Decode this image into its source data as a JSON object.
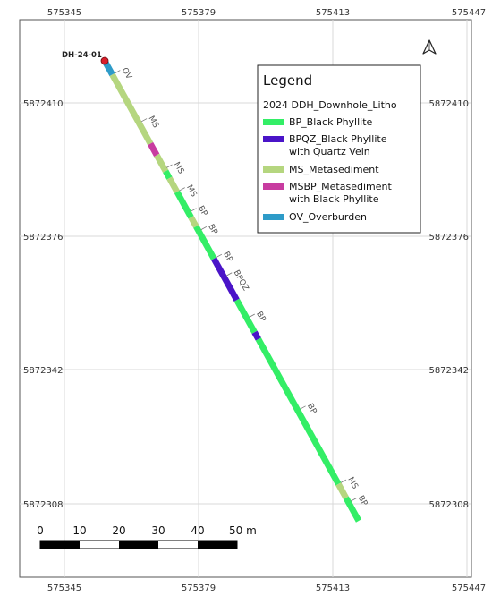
{
  "map": {
    "x_ticks": [
      "575345",
      "575379",
      "575413",
      "575447"
    ],
    "y_ticks": [
      "5872410",
      "5872376",
      "5872342",
      "5872308"
    ],
    "drillhole": {
      "name": "DH-24-01",
      "segments": [
        {
          "code": "OV",
          "from": 0.0,
          "to": 0.03
        },
        {
          "code": "MS",
          "from": 0.03,
          "to": 0.18
        },
        {
          "code": "MSBP",
          "from": 0.18,
          "to": 0.205
        },
        {
          "code": "MS",
          "from": 0.205,
          "to": 0.24
        },
        {
          "code": "BP",
          "from": 0.24,
          "to": 0.255
        },
        {
          "code": "MS",
          "from": 0.255,
          "to": 0.285
        },
        {
          "code": "BP",
          "from": 0.285,
          "to": 0.34
        },
        {
          "code": "MS",
          "from": 0.34,
          "to": 0.36
        },
        {
          "code": "BP",
          "from": 0.36,
          "to": 0.43
        },
        {
          "code": "BPQZ",
          "from": 0.43,
          "to": 0.52
        },
        {
          "code": "BP",
          "from": 0.52,
          "to": 0.59
        },
        {
          "code": "BPQZ",
          "from": 0.59,
          "to": 0.605
        },
        {
          "code": "BP",
          "from": 0.605,
          "to": 0.92
        },
        {
          "code": "MS",
          "from": 0.92,
          "to": 0.95
        },
        {
          "code": "BP",
          "from": 0.95,
          "to": 1.0
        }
      ],
      "labels": [
        {
          "text": "OV",
          "at": 0.03
        },
        {
          "text": "MS",
          "at": 0.135
        },
        {
          "text": "MS",
          "at": 0.235
        },
        {
          "text": "MS",
          "at": 0.285
        },
        {
          "text": "BP",
          "at": 0.33
        },
        {
          "text": "BP",
          "at": 0.37
        },
        {
          "text": "BP",
          "at": 0.43
        },
        {
          "text": "BPQZ",
          "at": 0.47
        },
        {
          "text": "BP",
          "at": 0.56
        },
        {
          "text": "BP",
          "at": 0.76
        },
        {
          "text": "MS",
          "at": 0.92
        },
        {
          "text": "BP",
          "at": 0.96
        }
      ]
    },
    "north_arrow": "north-arrow-icon"
  },
  "legend": {
    "title": "Legend",
    "layer": "2024 DDH_Downhole_Litho",
    "items": [
      {
        "code": "BP",
        "line1": "BP_Black Phyllite",
        "line2": "",
        "color": "#33ee66"
      },
      {
        "code": "BPQZ",
        "line1": "BPQZ_Black Phyllite",
        "line2": "with Quartz Vein",
        "color": "#4a14c8"
      },
      {
        "code": "MS",
        "line1": "MS_Metasediment",
        "line2": "",
        "color": "#b5d67f"
      },
      {
        "code": "MSBP",
        "line1": "MSBP_Metasediment",
        "line2": "with Black Phyllite",
        "color": "#c83ca0"
      },
      {
        "code": "OV",
        "line1": "OV_Overburden",
        "line2": "",
        "color": "#2e9bc8"
      }
    ]
  },
  "scalebar": {
    "labels": [
      "0",
      "10",
      "20",
      "30",
      "40",
      "50 m"
    ]
  }
}
